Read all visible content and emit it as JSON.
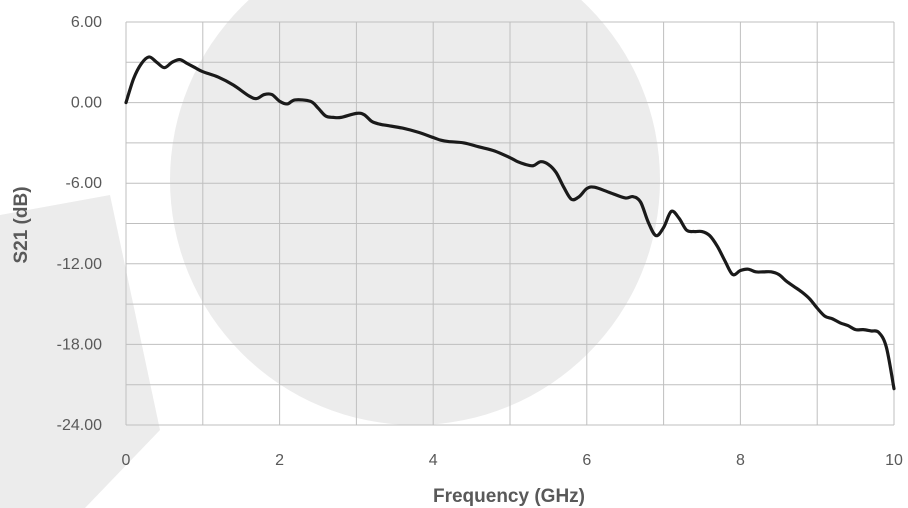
{
  "chart_data": {
    "type": "line",
    "title": "",
    "xlabel": "Frequency (GHz)",
    "ylabel": "S21 (dB)",
    "xlim": [
      0,
      10
    ],
    "ylim": [
      -24,
      6
    ],
    "x_ticks": [
      0,
      2,
      4,
      6,
      8,
      10
    ],
    "x_tick_labels": [
      "0",
      "2",
      "4",
      "6",
      "8",
      "10"
    ],
    "y_ticks": [
      6,
      0,
      -6,
      -12,
      -18,
      -24
    ],
    "y_tick_labels": [
      "6.00",
      "0.00",
      "-6.00",
      "-12.00",
      "-18.00",
      "-24.00"
    ],
    "grid": true,
    "legend": "none",
    "colors": {
      "series": "#1a1a1a",
      "grid": "#bfbfbf",
      "text": "#595959",
      "watermark": "#ececec"
    },
    "series": [
      {
        "x": [
          0,
          0.1,
          0.2,
          0.3,
          0.4,
          0.5,
          0.6,
          0.7,
          0.8,
          0.9,
          1.0,
          1.2,
          1.4,
          1.6,
          1.7,
          1.8,
          1.9,
          2.0,
          2.1,
          2.2,
          2.4,
          2.5,
          2.6,
          2.7,
          2.8,
          3.0,
          3.1,
          3.2,
          3.3,
          3.4,
          3.6,
          3.8,
          4.0,
          4.1,
          4.2,
          4.4,
          4.6,
          4.8,
          5.0,
          5.1,
          5.2,
          5.3,
          5.4,
          5.5,
          5.6,
          5.7,
          5.8,
          5.9,
          6.0,
          6.1,
          6.3,
          6.5,
          6.6,
          6.7,
          6.8,
          6.9,
          7.0,
          7.1,
          7.2,
          7.3,
          7.4,
          7.5,
          7.6,
          7.7,
          7.8,
          7.9,
          8.0,
          8.1,
          8.2,
          8.3,
          8.4,
          8.5,
          8.6,
          8.7,
          8.8,
          8.9,
          9.0,
          9.1,
          9.2,
          9.3,
          9.4,
          9.5,
          9.6,
          9.7,
          9.8,
          9.9,
          10.0
        ],
        "y": [
          0.0,
          1.8,
          2.9,
          3.4,
          3.0,
          2.6,
          3.0,
          3.2,
          2.9,
          2.6,
          2.3,
          1.9,
          1.3,
          0.5,
          0.3,
          0.6,
          0.6,
          0.1,
          -0.1,
          0.2,
          0.1,
          -0.4,
          -1.0,
          -1.1,
          -1.1,
          -0.8,
          -0.9,
          -1.4,
          -1.6,
          -1.7,
          -1.9,
          -2.2,
          -2.6,
          -2.8,
          -2.9,
          -3.0,
          -3.3,
          -3.6,
          -4.1,
          -4.4,
          -4.6,
          -4.7,
          -4.4,
          -4.6,
          -5.2,
          -6.3,
          -7.2,
          -7.0,
          -6.4,
          -6.3,
          -6.7,
          -7.1,
          -7.0,
          -7.4,
          -8.9,
          -9.9,
          -9.3,
          -8.1,
          -8.6,
          -9.5,
          -9.6,
          -9.6,
          -9.9,
          -10.7,
          -11.8,
          -12.8,
          -12.5,
          -12.4,
          -12.6,
          -12.6,
          -12.6,
          -12.8,
          -13.3,
          -13.7,
          -14.1,
          -14.6,
          -15.3,
          -15.9,
          -16.1,
          -16.4,
          -16.6,
          -16.9,
          -16.9,
          -17.0,
          -17.1,
          -18.2,
          -21.3
        ]
      }
    ]
  }
}
